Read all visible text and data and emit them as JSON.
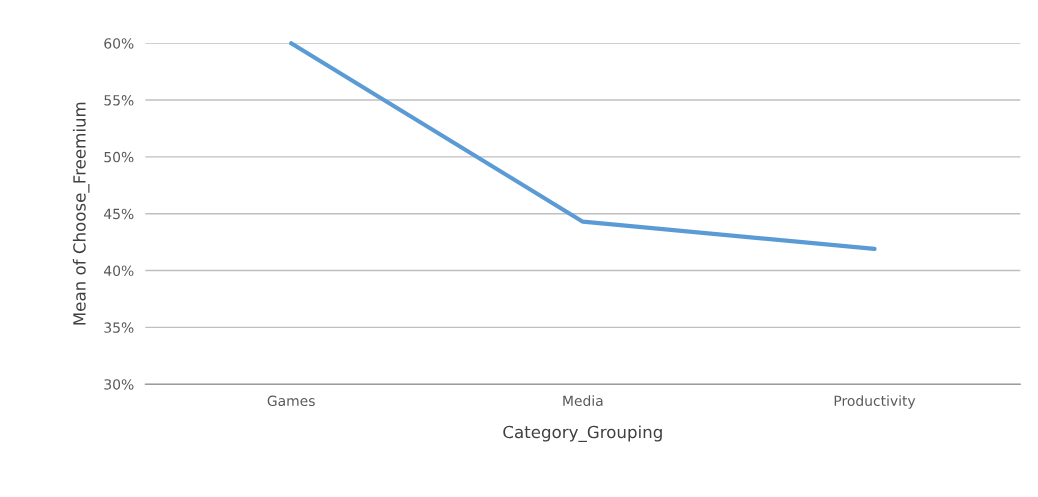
{
  "chart_data": {
    "type": "line",
    "xlabel": "Category_Grouping",
    "ylabel": "Mean of Choose_Freemium",
    "categories": [
      "Games",
      "Media",
      "Productivity"
    ],
    "series": [
      {
        "color": "#5b9bd5",
        "values": [
          60,
          44.3,
          41.9
        ]
      }
    ],
    "ylim": [
      30,
      60
    ],
    "yticks": [
      {
        "value": 30,
        "label": "30%"
      },
      {
        "value": 35,
        "label": "35%"
      },
      {
        "value": 40,
        "label": "40%"
      },
      {
        "value": 45,
        "label": "45%"
      },
      {
        "value": 50,
        "label": "50%"
      },
      {
        "value": 55,
        "label": "55%"
      },
      {
        "value": 60,
        "label": "60%"
      }
    ],
    "grid": "y",
    "marker": "none",
    "line_style": "solid"
  }
}
